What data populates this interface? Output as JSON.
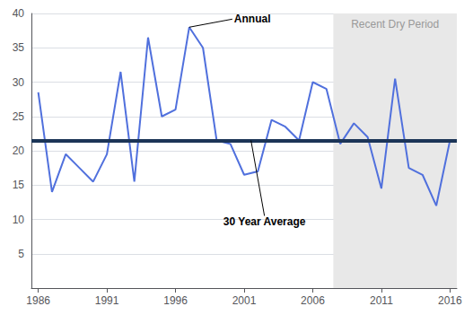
{
  "chart_data": {
    "type": "line",
    "x": [
      1986,
      1987,
      1988,
      1989,
      1990,
      1991,
      1992,
      1993,
      1994,
      1995,
      1996,
      1997,
      1998,
      1999,
      2000,
      2001,
      2002,
      2003,
      2004,
      2005,
      2006,
      2007,
      2008,
      2009,
      2010,
      2011,
      2012,
      2013,
      2014,
      2015,
      2016
    ],
    "values": [
      28.5,
      14.0,
      19.5,
      17.5,
      15.5,
      19.5,
      31.5,
      15.5,
      36.5,
      25.0,
      26.0,
      38.0,
      35.0,
      21.5,
      21.0,
      16.5,
      17.0,
      24.5,
      23.5,
      21.5,
      30.0,
      29.0,
      21.0,
      24.0,
      22.0,
      14.5,
      30.5,
      17.5,
      16.5,
      12.0,
      21.5
    ],
    "xlim": [
      1985.5,
      2016.5
    ],
    "ylim": [
      0,
      40
    ],
    "xticks": [
      1986,
      1991,
      1996,
      2001,
      2006,
      2011,
      2016
    ],
    "yticks": [
      5,
      10,
      15,
      20,
      25,
      30,
      35,
      40
    ],
    "grid": true,
    "reference_line": {
      "value": 21.5,
      "color": "#1c3557"
    },
    "shaded_span": {
      "x": [
        2007.5,
        2016.5
      ],
      "color": "#e8e8e8",
      "label": "Recent Dry Period"
    },
    "annotations": [
      {
        "text": "Annual",
        "x": 1997,
        "y": 38
      },
      {
        "text": "30 Year Average",
        "x": 2001.5,
        "y": 21.5
      }
    ]
  }
}
